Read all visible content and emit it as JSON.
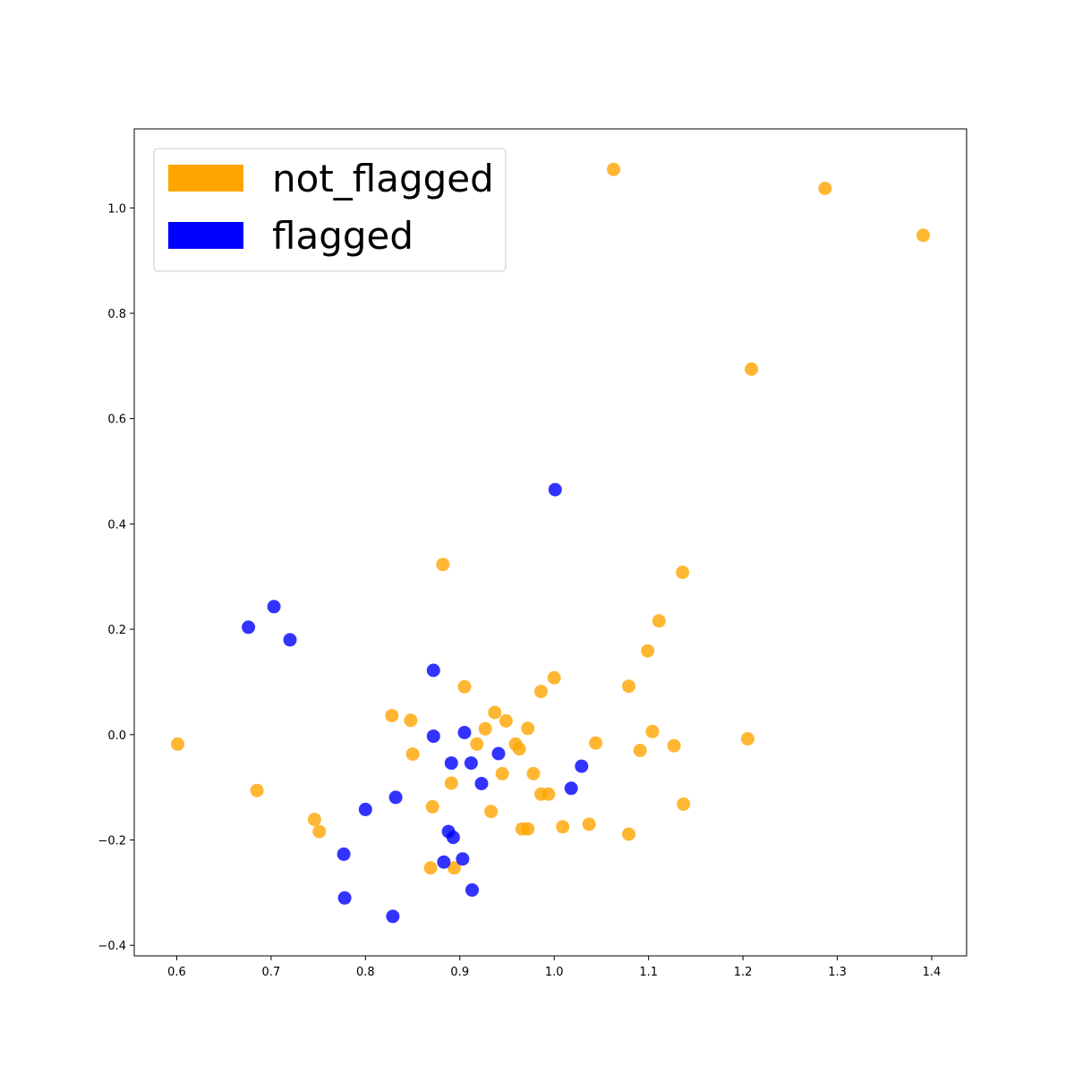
{
  "chart_data": {
    "type": "scatter",
    "title": "",
    "xlabel": "",
    "ylabel": "",
    "xlim": [
      0.555,
      1.437
    ],
    "ylim": [
      -0.42,
      1.15
    ],
    "xticks": [
      0.6,
      0.7,
      0.8,
      0.9,
      1.0,
      1.1,
      1.2,
      1.3,
      1.4
    ],
    "yticks": [
      -0.4,
      -0.2,
      0.0,
      0.2,
      0.4,
      0.6,
      0.8,
      1.0
    ],
    "xtick_labels": [
      "0.6",
      "0.7",
      "0.8",
      "0.9",
      "1.0",
      "1.1",
      "1.2",
      "1.3",
      "1.4"
    ],
    "ytick_labels": [
      "−0.4",
      "−0.2",
      "0.0",
      "0.2",
      "0.4",
      "0.6",
      "0.8",
      "1.0"
    ],
    "grid": false,
    "legend_position": "top-left",
    "series": [
      {
        "name": "not_flagged",
        "color": "#ffa500",
        "points": [
          [
            1.063,
            1.073
          ],
          [
            1.287,
            1.037
          ],
          [
            1.391,
            0.948
          ],
          [
            1.209,
            0.694
          ],
          [
            0.882,
            0.323
          ],
          [
            1.136,
            0.308
          ],
          [
            1.111,
            0.216
          ],
          [
            1.099,
            0.159
          ],
          [
            1.0,
            0.108
          ],
          [
            0.905,
            0.091
          ],
          [
            1.079,
            0.092
          ],
          [
            0.986,
            0.082
          ],
          [
            0.828,
            0.036
          ],
          [
            0.937,
            0.042
          ],
          [
            0.848,
            0.027
          ],
          [
            0.949,
            0.026
          ],
          [
            0.927,
            0.011
          ],
          [
            0.972,
            0.012
          ],
          [
            1.104,
            0.006
          ],
          [
            1.205,
            -0.008
          ],
          [
            0.601,
            -0.018
          ],
          [
            0.918,
            -0.018
          ],
          [
            0.959,
            -0.018
          ],
          [
            0.963,
            -0.027
          ],
          [
            1.044,
            -0.016
          ],
          [
            1.127,
            -0.021
          ],
          [
            1.091,
            -0.03
          ],
          [
            0.85,
            -0.037
          ],
          [
            0.945,
            -0.074
          ],
          [
            0.978,
            -0.074
          ],
          [
            0.891,
            -0.092
          ],
          [
            0.986,
            -0.113
          ],
          [
            0.994,
            -0.113
          ],
          [
            0.685,
            -0.106
          ],
          [
            1.137,
            -0.132
          ],
          [
            0.871,
            -0.137
          ],
          [
            0.933,
            -0.146
          ],
          [
            0.746,
            -0.161
          ],
          [
            1.037,
            -0.17
          ],
          [
            1.009,
            -0.175
          ],
          [
            0.751,
            -0.184
          ],
          [
            0.966,
            -0.179
          ],
          [
            0.972,
            -0.179
          ],
          [
            1.079,
            -0.189
          ],
          [
            0.869,
            -0.253
          ],
          [
            0.894,
            -0.253
          ]
        ]
      },
      {
        "name": "flagged",
        "color": "#0000ff",
        "points": [
          [
            1.001,
            0.465
          ],
          [
            0.703,
            0.243
          ],
          [
            0.676,
            0.204
          ],
          [
            0.72,
            0.18
          ],
          [
            0.872,
            0.122
          ],
          [
            0.905,
            0.004
          ],
          [
            0.872,
            -0.003
          ],
          [
            0.941,
            -0.036
          ],
          [
            0.891,
            -0.054
          ],
          [
            0.912,
            -0.054
          ],
          [
            1.029,
            -0.06
          ],
          [
            0.923,
            -0.093
          ],
          [
            1.018,
            -0.102
          ],
          [
            0.832,
            -0.119
          ],
          [
            0.8,
            -0.142
          ],
          [
            0.888,
            -0.184
          ],
          [
            0.893,
            -0.195
          ],
          [
            0.903,
            -0.236
          ],
          [
            0.883,
            -0.242
          ],
          [
            0.777,
            -0.227
          ],
          [
            0.778,
            -0.31
          ],
          [
            0.913,
            -0.295
          ],
          [
            0.829,
            -0.345
          ]
        ]
      }
    ]
  }
}
